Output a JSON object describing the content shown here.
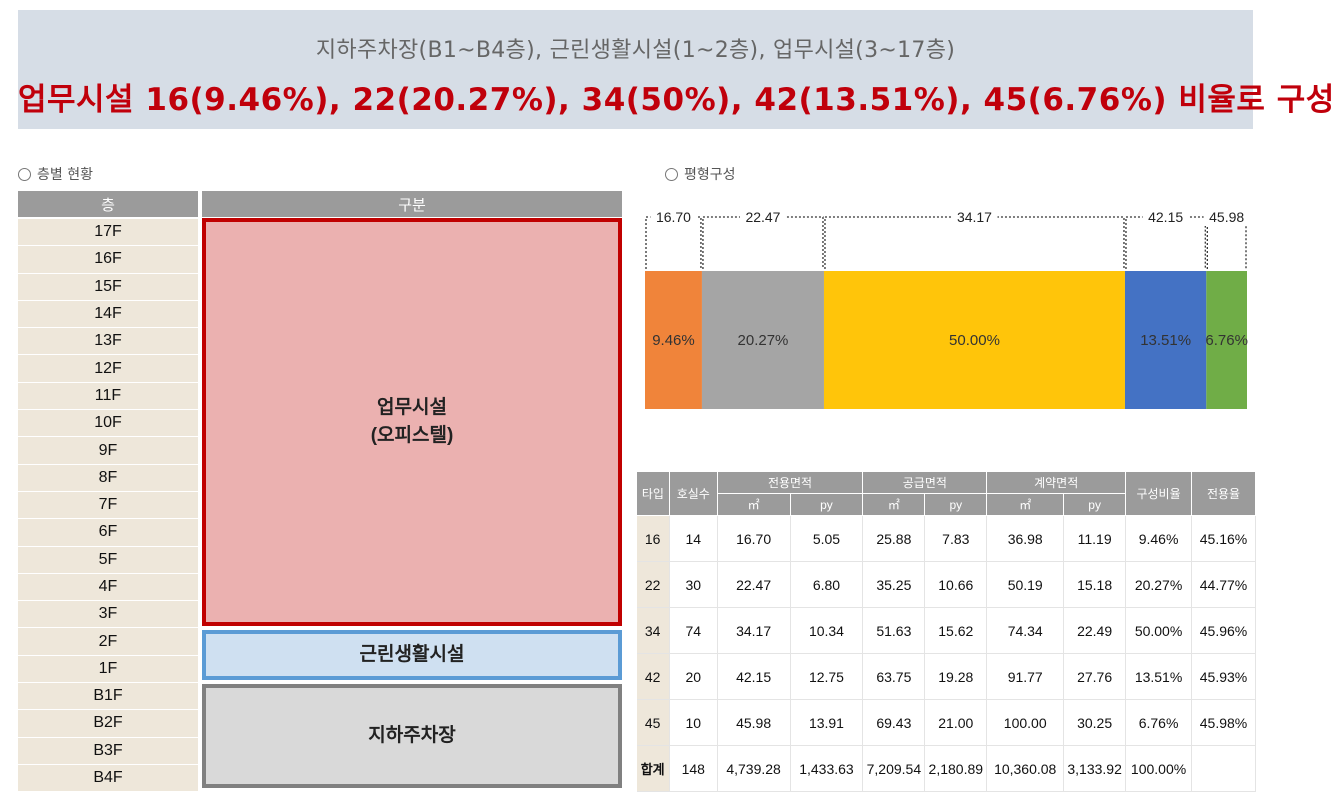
{
  "banner": {
    "sub": "지하주차장(B1~B4층), 근린생활시설(1~2층), 업무시설(3~17층)",
    "main": "업무시설 16(9.46%), 22(20.27%), 34(50%), 42(13.51%), 45(6.76%) 비율로 구성"
  },
  "floor_section": {
    "label": "층별 현황",
    "col_floor": "층",
    "col_type": "구분",
    "floors": [
      "17F",
      "16F",
      "15F",
      "14F",
      "13F",
      "12F",
      "11F",
      "10F",
      "9F",
      "8F",
      "7F",
      "6F",
      "5F",
      "4F",
      "3F",
      "2F",
      "1F",
      "B1F",
      "B2F",
      "B3F",
      "B4F"
    ],
    "zones": {
      "office_line1": "업무시설",
      "office_line2": "(오피스텔)",
      "retail": "근린생활시설",
      "parking": "지하주차장"
    },
    "colors": {
      "office": "#ebb1b0",
      "office_border": "#c00000",
      "retail": "#cfe0f1",
      "retail_border": "#5b9bd5",
      "parking": "#d9d9d9",
      "parking_border": "#808080"
    }
  },
  "plan_section": {
    "label": "평형구성"
  },
  "chart_data": {
    "type": "bar",
    "stacked": true,
    "orientation": "horizontal",
    "series": [
      {
        "label": "16.70",
        "value": 9.46,
        "pct_label": "9.46%",
        "color": "#f0843a"
      },
      {
        "label": "22.47",
        "value": 20.27,
        "pct_label": "20.27%",
        "color": "#a5a5a5"
      },
      {
        "label": "34.17",
        "value": 50.0,
        "pct_label": "50.00%",
        "color": "#ffc50a"
      },
      {
        "label": "42.15",
        "value": 13.51,
        "pct_label": "13.51%",
        "color": "#4472c4"
      },
      {
        "label": "45.98",
        "value": 6.76,
        "pct_label": "6.76%",
        "color": "#70ad47"
      }
    ]
  },
  "unit_table": {
    "headers": {
      "type": "타입",
      "count": "호실수",
      "exclusive": "전용면적",
      "supply": "공급면적",
      "contract": "계약면적",
      "ratio": "구성비율",
      "efficiency": "전용율",
      "sqm": "㎡",
      "py": "py"
    },
    "rows": [
      {
        "type": "16",
        "count": "14",
        "ex_m2": "16.70",
        "ex_py": "5.05",
        "sup_m2": "25.88",
        "sup_py": "7.83",
        "con_m2": "36.98",
        "con_py": "11.19",
        "ratio": "9.46%",
        "eff": "45.16%"
      },
      {
        "type": "22",
        "count": "30",
        "ex_m2": "22.47",
        "ex_py": "6.80",
        "sup_m2": "35.25",
        "sup_py": "10.66",
        "con_m2": "50.19",
        "con_py": "15.18",
        "ratio": "20.27%",
        "eff": "44.77%"
      },
      {
        "type": "34",
        "count": "74",
        "ex_m2": "34.17",
        "ex_py": "10.34",
        "sup_m2": "51.63",
        "sup_py": "15.62",
        "con_m2": "74.34",
        "con_py": "22.49",
        "ratio": "50.00%",
        "eff": "45.96%"
      },
      {
        "type": "42",
        "count": "20",
        "ex_m2": "42.15",
        "ex_py": "12.75",
        "sup_m2": "63.75",
        "sup_py": "19.28",
        "con_m2": "91.77",
        "con_py": "27.76",
        "ratio": "13.51%",
        "eff": "45.93%"
      },
      {
        "type": "45",
        "count": "10",
        "ex_m2": "45.98",
        "ex_py": "13.91",
        "sup_m2": "69.43",
        "sup_py": "21.00",
        "con_m2": "100.00",
        "con_py": "30.25",
        "ratio": "6.76%",
        "eff": "45.98%"
      }
    ],
    "total": {
      "type": "합계",
      "count": "148",
      "ex_m2": "4,739.28",
      "ex_py": "1,433.63",
      "sup_m2": "7,209.54",
      "sup_py": "2,180.89",
      "con_m2": "10,360.08",
      "con_py": "3,133.92",
      "ratio": "100.00%",
      "eff": ""
    }
  }
}
